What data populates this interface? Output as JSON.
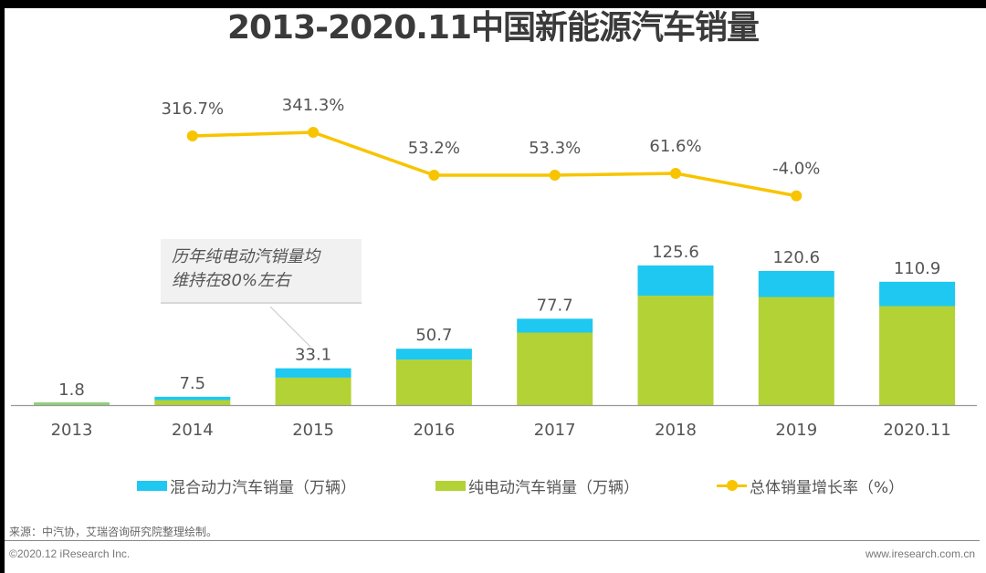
{
  "title": "2013-2020.11中国新能源汽车销量",
  "colors": {
    "hybrid": "#1ec8f0",
    "ev": "#b3d235",
    "growth": "#f8c400",
    "axis": "#999999",
    "label": "#555555",
    "small_bar": "#8fd17a"
  },
  "callout": {
    "line1": "历年纯电动汽销量均",
    "line2": "维持在80%左右"
  },
  "legend": {
    "hybrid": "混合动力汽车销量（万辆）",
    "ev": "纯电动汽车销量（万辆）",
    "growth": "总体销量增长率（%）"
  },
  "footer": {
    "source": "来源：中汽协，艾瑞咨询研究院整理绘制。",
    "copyright": "©2020.12 iResearch Inc.",
    "site": "www.iresearch.com.cn"
  },
  "chart_data": {
    "type": "bar",
    "stacked": true,
    "title": "2013-2020.11中国新能源汽车销量",
    "xlabel": "",
    "ylabel": "",
    "categories": [
      "2013",
      "2014",
      "2015",
      "2016",
      "2017",
      "2018",
      "2019",
      "2020.11"
    ],
    "totals": [
      1.8,
      7.5,
      33.1,
      50.7,
      77.7,
      125.6,
      120.6,
      110.9
    ],
    "total_labels": [
      "1.8",
      "7.5",
      "33.1",
      "50.7",
      "77.7",
      "125.6",
      "120.6",
      "110.9"
    ],
    "series": [
      {
        "name": "纯电动汽车销量（万辆）",
        "type": "bar",
        "values": [
          1.4,
          4.5,
          24.7,
          40.9,
          65.2,
          98.4,
          97.2,
          89.0
        ]
      },
      {
        "name": "混合动力汽车销量（万辆）",
        "type": "bar",
        "values": [
          0.4,
          3.0,
          8.4,
          9.8,
          12.5,
          27.2,
          23.4,
          21.9
        ]
      },
      {
        "name": "总体销量增长率（%）",
        "type": "line",
        "values": [
          null,
          316.7,
          341.3,
          53.2,
          53.3,
          61.6,
          -4.0,
          null
        ],
        "labels": [
          null,
          "316.7%",
          "341.3%",
          "53.2%",
          "53.3%",
          "61.6%",
          "-4.0%",
          null
        ]
      }
    ],
    "ylim": [
      0,
      140
    ],
    "grid": false,
    "legend_position": "bottom",
    "annotation": "历年纯电动汽销量均维持在80%左右"
  }
}
